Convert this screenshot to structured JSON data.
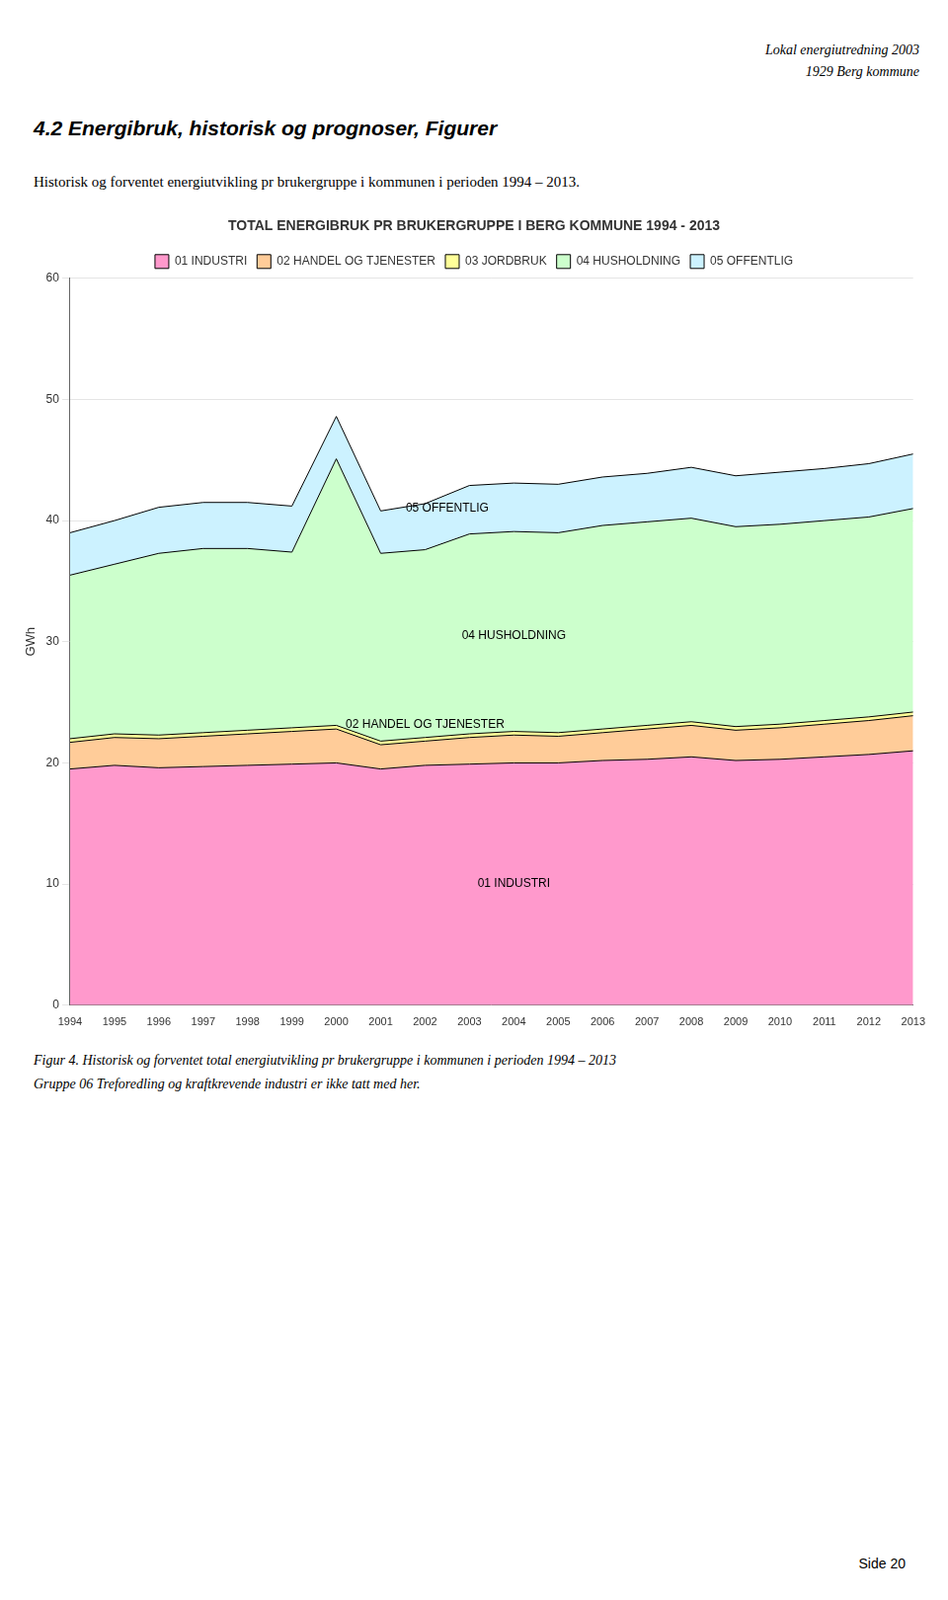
{
  "header_lines": [
    "Lokal energiutredning 2003",
    "1929 Berg kommune"
  ],
  "section_title": "4.2  Energibruk, historisk og prognoser, Figurer",
  "intro_text": "Historisk og forventet energiutvikling pr brukergruppe i kommunen i perioden 1994 – 2013.",
  "caption_lines": [
    "Figur 4. Historisk og forventet total energiutvikling pr brukergruppe i kommunen i perioden 1994 – 2013",
    "Gruppe 06 Treforedling og kraftkrevende industri er ikke tatt med her."
  ],
  "page_number": "Side 20",
  "chart_data": {
    "type": "area",
    "title": "TOTAL ENERGIBRUK PR BRUKERGRUPPE I BERG KOMMUNE 1994 - 2013",
    "ylabel": "GWh",
    "x": [
      1994,
      1995,
      1996,
      1997,
      1998,
      1999,
      2000,
      2001,
      2002,
      2003,
      2004,
      2005,
      2006,
      2007,
      2008,
      2009,
      2010,
      2011,
      2012,
      2013
    ],
    "xlim": [
      1994,
      2013
    ],
    "xticks": [
      1994,
      1995,
      1996,
      1997,
      1998,
      1999,
      2000,
      2001,
      2002,
      2003,
      2004,
      2005,
      2006,
      2007,
      2008,
      2009,
      2010,
      2011,
      2012,
      2013
    ],
    "ylim": [
      0,
      60
    ],
    "yticks": [
      0,
      10,
      20,
      30,
      40,
      50,
      60
    ],
    "stacked": true,
    "grid": "y",
    "legend": "top",
    "series": [
      {
        "name": "01 INDUSTRI",
        "color": "#ff99cc",
        "values": [
          19.5,
          19.8,
          19.6,
          19.7,
          19.8,
          19.9,
          20.0,
          19.5,
          19.8,
          19.9,
          20.0,
          20.0,
          20.2,
          20.3,
          20.5,
          20.2,
          20.3,
          20.5,
          20.7,
          21.0
        ]
      },
      {
        "name": "02 HANDEL OG TJENESTER",
        "color": "#ffcc99",
        "values": [
          2.2,
          2.3,
          2.4,
          2.5,
          2.6,
          2.7,
          2.8,
          2.0,
          2.0,
          2.2,
          2.3,
          2.2,
          2.3,
          2.5,
          2.6,
          2.5,
          2.6,
          2.7,
          2.8,
          2.9
        ]
      },
      {
        "name": "03 JORDBRUK",
        "color": "#ffff99",
        "values": [
          0.3,
          0.3,
          0.3,
          0.3,
          0.3,
          0.3,
          0.3,
          0.3,
          0.3,
          0.3,
          0.3,
          0.3,
          0.3,
          0.3,
          0.3,
          0.3,
          0.3,
          0.3,
          0.3,
          0.3
        ]
      },
      {
        "name": "04 HUSHOLDNING",
        "color": "#ccffcc",
        "values": [
          13.5,
          14.0,
          15.0,
          15.2,
          15.0,
          14.5,
          22.0,
          15.5,
          15.5,
          16.5,
          16.5,
          16.5,
          16.8,
          16.8,
          16.8,
          16.5,
          16.5,
          16.5,
          16.5,
          16.8
        ]
      },
      {
        "name": "05 OFFENTLIG",
        "color": "#ccf2ff",
        "values": [
          3.5,
          3.6,
          3.8,
          3.8,
          3.8,
          3.8,
          3.5,
          3.5,
          3.8,
          4.0,
          4.0,
          4.0,
          4.0,
          4.0,
          4.2,
          4.2,
          4.3,
          4.3,
          4.4,
          4.5
        ]
      }
    ],
    "annotations": [
      {
        "text": "05 OFFENTLIG",
        "x": 2002.5,
        "y": 41.0
      },
      {
        "text": "04 HUSHOLDNING",
        "x": 2004.0,
        "y": 30.5
      },
      {
        "text": "02 HANDEL OG TJENESTER",
        "x": 2002.0,
        "y": 23.2
      },
      {
        "text": "01 INDUSTRI",
        "x": 2004.0,
        "y": 10.0
      }
    ]
  }
}
